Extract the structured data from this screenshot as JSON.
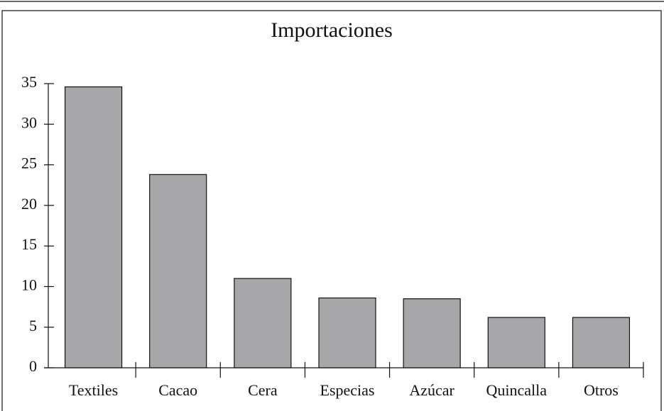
{
  "chart_data": {
    "type": "bar",
    "title": "Importaciones",
    "categories": [
      "Textiles",
      "Cacao",
      "Cera",
      "Especias",
      "Azúcar",
      "Quincalla",
      "Otros"
    ],
    "values": [
      34.6,
      23.8,
      11.0,
      8.6,
      8.5,
      6.2,
      6.2
    ],
    "color": "#a7a7aa",
    "ylim": [
      0,
      35
    ],
    "yticks": [
      0,
      5,
      10,
      15,
      20,
      25,
      30,
      35
    ],
    "grid": false
  }
}
